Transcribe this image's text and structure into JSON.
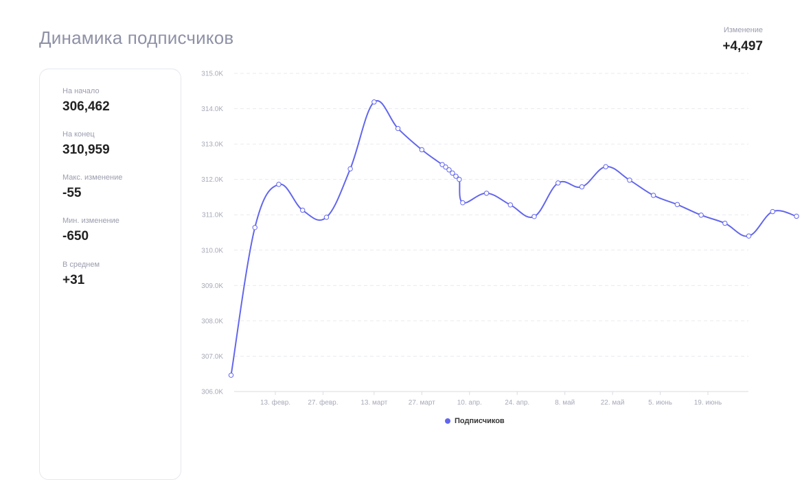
{
  "header": {
    "title": "Динамика подписчиков",
    "change_label": "Изменение",
    "change_value": "+4,497"
  },
  "stats": [
    {
      "label": "На начало",
      "value": "306,462"
    },
    {
      "label": "На конец",
      "value": "310,959"
    },
    {
      "label": "Макс. изменение",
      "value": "-55"
    },
    {
      "label": "Мин. изменение",
      "value": "-650"
    },
    {
      "label": "В среднем",
      "value": "+31"
    }
  ],
  "chart_data": {
    "type": "line",
    "title": "",
    "xlabel": "",
    "ylabel": "",
    "ylim": [
      306000,
      315000
    ],
    "yticks": [
      306000,
      307000,
      308000,
      309000,
      310000,
      311000,
      312000,
      313000,
      314000,
      315000
    ],
    "ytick_labels": [
      "306.0K",
      "307.0K",
      "308.0K",
      "309.0K",
      "310.0K",
      "311.0K",
      "312.0K",
      "313.0K",
      "314.0K",
      "315.0K"
    ],
    "xlim": [
      "2024-01-30",
      "2024-07-08"
    ],
    "xticks": [
      "2024-02-13",
      "2024-02-27",
      "2024-03-13",
      "2024-03-27",
      "2024-04-10",
      "2024-04-24",
      "2024-05-08",
      "2024-05-22",
      "2024-06-05",
      "2024-06-19"
    ],
    "xtick_labels": [
      "13. февр.",
      "27. февр.",
      "13. март",
      "27. март",
      "10. апр.",
      "24. апр.",
      "8. май",
      "22. май",
      "5. июнь",
      "19. июнь"
    ],
    "grid": true,
    "legend": "bottom",
    "color": "#6266ec",
    "series": [
      {
        "name": "Подписчиков",
        "points": [
          [
            "2024-01-31",
            306462
          ],
          [
            "2024-02-07",
            310640
          ],
          [
            "2024-02-14",
            311860
          ],
          [
            "2024-02-21",
            311130
          ],
          [
            "2024-02-28",
            310930
          ],
          [
            "2024-03-06",
            312300
          ],
          [
            "2024-03-13",
            314190
          ],
          [
            "2024-03-20",
            313440
          ],
          [
            "2024-03-27",
            312840
          ],
          [
            "2024-04-02",
            312420
          ],
          [
            "2024-04-03",
            312350
          ],
          [
            "2024-04-04",
            312270
          ],
          [
            "2024-04-05",
            312180
          ],
          [
            "2024-04-06",
            312090
          ],
          [
            "2024-04-07",
            312000
          ],
          [
            "2024-04-08",
            311340
          ],
          [
            "2024-04-15",
            311610
          ],
          [
            "2024-04-22",
            311280
          ],
          [
            "2024-04-29",
            310950
          ],
          [
            "2024-05-06",
            311900
          ],
          [
            "2024-05-13",
            311790
          ],
          [
            "2024-05-20",
            312360
          ],
          [
            "2024-05-27",
            311980
          ],
          [
            "2024-06-03",
            311550
          ],
          [
            "2024-06-10",
            311290
          ],
          [
            "2024-06-17",
            310990
          ],
          [
            "2024-06-24",
            310760
          ],
          [
            "2024-07-01",
            310400
          ],
          [
            "2024-07-08",
            311090
          ],
          [
            "2024-07-15",
            310959
          ]
        ]
      }
    ]
  }
}
